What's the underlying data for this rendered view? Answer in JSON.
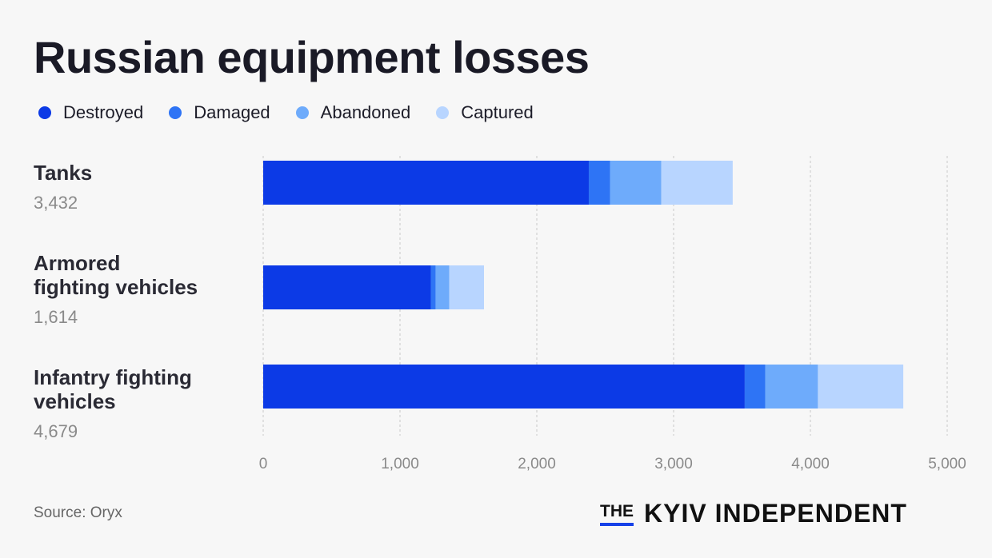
{
  "title": "Russian equipment losses",
  "source": "Source: Oryx",
  "logo": {
    "the": "THE",
    "name": "KYIV INDEPENDENT"
  },
  "colors": {
    "destroyed": "#0c3ae6",
    "damaged": "#2e74f5",
    "abandoned": "#6eabfb",
    "captured": "#b8d5ff",
    "grid": "#c9c9c9",
    "background": "#f7f7f7"
  },
  "legend": [
    {
      "label": "Destroyed",
      "color": "#0c3ae6"
    },
    {
      "label": "Damaged",
      "color": "#2e74f5"
    },
    {
      "label": "Abandoned",
      "color": "#6eabfb"
    },
    {
      "label": "Captured",
      "color": "#b8d5ff"
    }
  ],
  "categories": [
    {
      "name": "Tanks",
      "total": "3,432"
    },
    {
      "name": "Armored\nfighting vehicles",
      "total": "1,614"
    },
    {
      "name": "Infantry fighting\nvehicles",
      "total": "4,679"
    }
  ],
  "chart_data": {
    "type": "bar",
    "orientation": "horizontal",
    "stacked": true,
    "title": "Russian equipment losses",
    "categories": [
      "Tanks",
      "Armored fighting vehicles",
      "Infantry fighting vehicles"
    ],
    "series": [
      {
        "name": "Destroyed",
        "values": [
          2380,
          1225,
          3520
        ]
      },
      {
        "name": "Damaged",
        "values": [
          155,
          35,
          150
        ]
      },
      {
        "name": "Abandoned",
        "values": [
          375,
          100,
          385
        ]
      },
      {
        "name": "Captured",
        "values": [
          522,
          254,
          624
        ]
      }
    ],
    "xlim": [
      0,
      5000
    ],
    "x_ticks": [
      0,
      1000,
      2000,
      3000,
      4000,
      5000
    ],
    "x_tick_labels": [
      "0",
      "1,000",
      "2,000",
      "3,000",
      "4,000",
      "5,000"
    ],
    "grid": true,
    "grid_style": "dashed-vertical",
    "legend_position": "top-left"
  }
}
